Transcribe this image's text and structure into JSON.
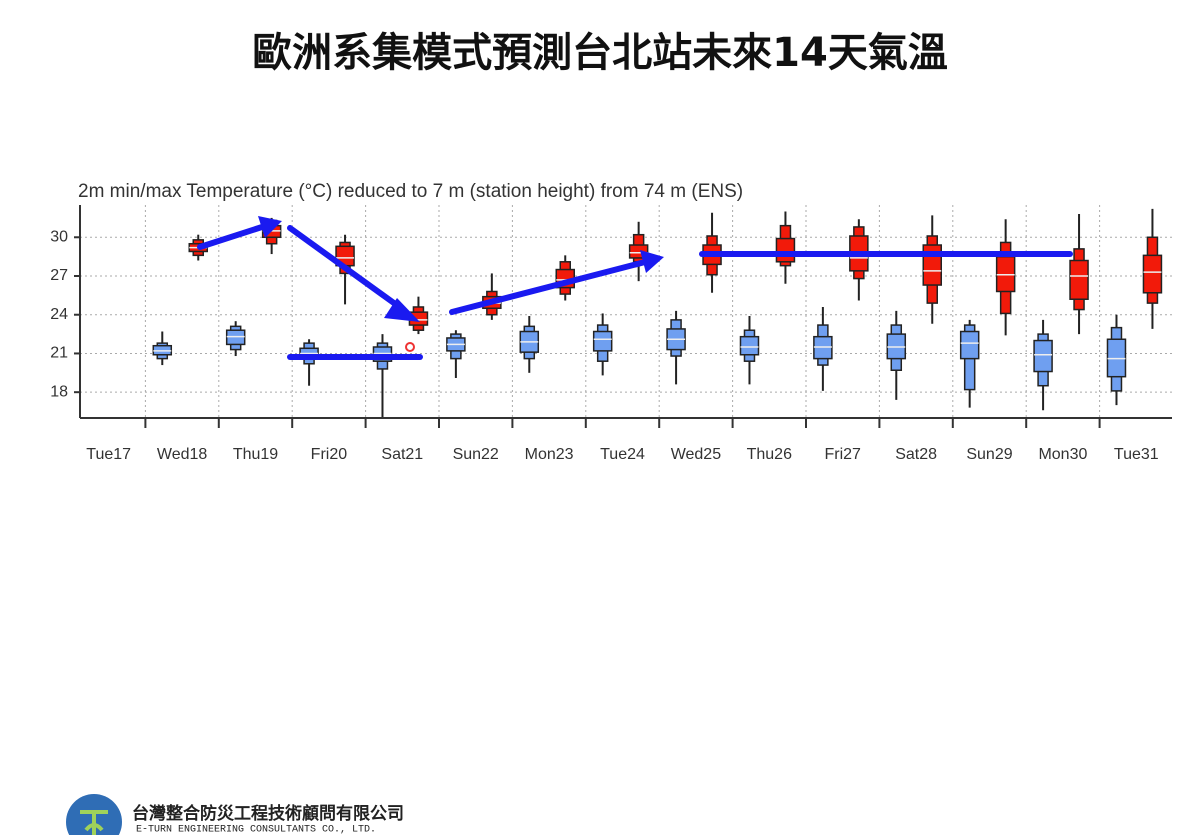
{
  "header": {
    "title": "歐洲系集模式預測台北站未來14天氣溫"
  },
  "chart_data": {
    "type": "boxplot",
    "subtitle": "2m min/max Temperature (°C) reduced to 7 m (station height) from 74 m (ENS)",
    "categories": [
      "Tue17",
      "Wed18",
      "Thu19",
      "Fri20",
      "Sat21",
      "Sun22",
      "Mon23",
      "Tue24",
      "Wed25",
      "Thu26",
      "Fri27",
      "Sat28",
      "Sun29",
      "Mon30",
      "Tue31"
    ],
    "category_colors": [
      "#333333",
      "#333333",
      "#333333",
      "#333333",
      "#333333",
      "#e8301c",
      "#333333",
      "#333333",
      "#333333",
      "#333333",
      "#333333",
      "#333333",
      "#e8301c",
      "#333333",
      "#333333"
    ],
    "ylim": [
      16,
      32.5
    ],
    "yticks": [
      18,
      21,
      24,
      27,
      30
    ],
    "grid": true,
    "min_color": "#6f9ff0",
    "max_color": "#f21a0a",
    "min_temp": [
      null,
      {
        "low": 20.1,
        "p10": 20.6,
        "p25": 20.9,
        "median": 21.2,
        "p75": 21.6,
        "p90": 21.8,
        "high": 22.7
      },
      {
        "low": 20.8,
        "p10": 21.3,
        "p25": 21.7,
        "median": 22.3,
        "p75": 22.8,
        "p90": 23.1,
        "high": 23.5
      },
      {
        "low": 18.5,
        "p10": 20.2,
        "p25": 20.7,
        "median": 21.0,
        "p75": 21.4,
        "p90": 21.8,
        "high": 22.1
      },
      {
        "low": 16.0,
        "p10": 19.8,
        "p25": 20.4,
        "median": 21.0,
        "p75": 21.5,
        "p90": 21.8,
        "high": 22.5
      },
      {
        "low": 19.1,
        "p10": 20.6,
        "p25": 21.2,
        "median": 21.7,
        "p75": 22.2,
        "p90": 22.5,
        "high": 22.8
      },
      {
        "low": 19.5,
        "p10": 20.6,
        "p25": 21.1,
        "median": 21.9,
        "p75": 22.7,
        "p90": 23.1,
        "high": 23.9
      },
      {
        "low": 19.3,
        "p10": 20.4,
        "p25": 21.2,
        "median": 22.1,
        "p75": 22.7,
        "p90": 23.2,
        "high": 24.1
      },
      {
        "low": 18.6,
        "p10": 20.8,
        "p25": 21.3,
        "median": 22.1,
        "p75": 22.9,
        "p90": 23.6,
        "high": 24.3
      },
      {
        "low": 18.6,
        "p10": 20.4,
        "p25": 20.9,
        "median": 21.5,
        "p75": 22.3,
        "p90": 22.8,
        "high": 23.9
      },
      {
        "low": 18.1,
        "p10": 20.1,
        "p25": 20.6,
        "median": 21.5,
        "p75": 22.3,
        "p90": 23.2,
        "high": 24.6
      },
      {
        "low": 17.4,
        "p10": 19.7,
        "p25": 20.6,
        "median": 21.5,
        "p75": 22.5,
        "p90": 23.2,
        "high": 24.3
      },
      {
        "low": 16.8,
        "p10": 18.2,
        "p25": 20.6,
        "median": 21.8,
        "p75": 22.7,
        "p90": 23.2,
        "high": 23.6
      },
      {
        "low": 16.6,
        "p10": 18.5,
        "p25": 19.6,
        "median": 20.9,
        "p75": 22.0,
        "p90": 22.5,
        "high": 23.6
      },
      {
        "low": 17.0,
        "p10": 18.1,
        "p25": 19.2,
        "median": 20.6,
        "p75": 22.1,
        "p90": 23.0,
        "high": 24.0
      }
    ],
    "max_temp": [
      null,
      {
        "low": 28.2,
        "p10": 28.6,
        "p25": 28.9,
        "median": 29.2,
        "p75": 29.5,
        "p90": 29.8,
        "high": 30.2
      },
      {
        "low": 28.7,
        "p10": 29.5,
        "p25": 30.0,
        "median": 30.5,
        "p75": 30.9,
        "p90": 31.3,
        "high": 31.5
      },
      {
        "low": 24.8,
        "p10": 27.2,
        "p25": 27.8,
        "median": 28.4,
        "p75": 29.3,
        "p90": 29.6,
        "high": 30.2
      },
      {
        "low": 22.5,
        "p10": 22.8,
        "p25": 23.2,
        "median": 23.6,
        "p75": 24.2,
        "p90": 24.6,
        "high": 25.4
      },
      {
        "low": 23.6,
        "p10": 24.0,
        "p25": 24.5,
        "median": 24.9,
        "p75": 25.4,
        "p90": 25.8,
        "high": 27.2
      },
      {
        "low": 25.1,
        "p10": 25.6,
        "p25": 26.1,
        "median": 26.7,
        "p75": 27.5,
        "p90": 28.1,
        "high": 28.6
      },
      {
        "low": 26.6,
        "p10": 28.1,
        "p25": 28.4,
        "median": 28.8,
        "p75": 29.4,
        "p90": 30.2,
        "high": 31.2
      },
      {
        "low": 25.7,
        "p10": 27.1,
        "p25": 27.9,
        "median": 28.6,
        "p75": 29.4,
        "p90": 30.1,
        "high": 31.9
      },
      {
        "low": 26.4,
        "p10": 27.8,
        "p25": 28.1,
        "median": 28.7,
        "p75": 29.9,
        "p90": 30.9,
        "high": 32.0
      },
      {
        "low": 25.1,
        "p10": 26.8,
        "p25": 27.4,
        "median": 28.4,
        "p75": 30.1,
        "p90": 30.8,
        "high": 31.4
      },
      {
        "low": 23.3,
        "p10": 24.9,
        "p25": 26.3,
        "median": 27.4,
        "p75": 29.4,
        "p90": 30.1,
        "high": 31.7
      },
      {
        "low": 22.4,
        "p10": 24.1,
        "p25": 25.8,
        "median": 27.1,
        "p75": 28.5,
        "p90": 29.6,
        "high": 31.4
      },
      {
        "low": 22.5,
        "p10": 24.4,
        "p25": 25.2,
        "median": 27.0,
        "p75": 28.2,
        "p90": 29.1,
        "high": 31.8
      },
      {
        "low": 22.9,
        "p10": 24.9,
        "p25": 25.7,
        "median": 27.3,
        "p75": 28.6,
        "p90": 30.0,
        "high": 32.2
      }
    ]
  },
  "footer": {
    "company": "台灣整合防災工程技術顧問有限公司",
    "company_en": "E-TURN ENGINEERING CONSULTANTS CO., LTD."
  }
}
